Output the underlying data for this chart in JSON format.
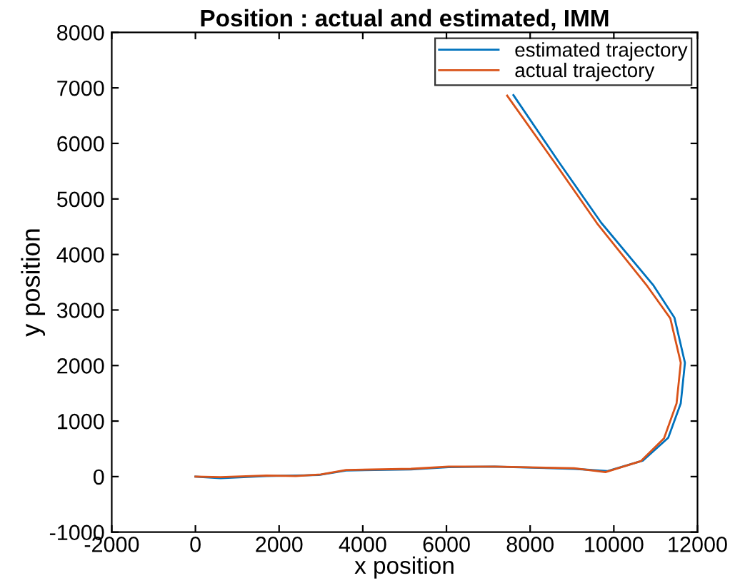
{
  "chart_data": {
    "type": "line",
    "title": "Position : actual and estimated, IMM",
    "xlabel": "x position",
    "ylabel": "y position",
    "xlim": [
      -2000,
      12000
    ],
    "ylim": [
      -1000,
      8000
    ],
    "xticks": [
      -2000,
      0,
      2000,
      4000,
      6000,
      8000,
      10000,
      12000
    ],
    "yticks": [
      -1000,
      0,
      1000,
      2000,
      3000,
      4000,
      5000,
      6000,
      7000,
      8000
    ],
    "grid": false,
    "legend": "top right",
    "series": [
      {
        "name": "estimated trajectory",
        "color": "#0072bd",
        "x": [
          0,
          600,
          1700,
          2400,
          2950,
          3600,
          5150,
          6050,
          7150,
          9050,
          9850,
          10700,
          11300,
          11600,
          11700,
          11450,
          10950,
          9700,
          8700,
          7600
        ],
        "values": [
          0,
          -30,
          10,
          20,
          30,
          110,
          130,
          170,
          180,
          140,
          100,
          290,
          700,
          1320,
          2050,
          2860,
          3440,
          4570,
          5650,
          6870
        ]
      },
      {
        "name": "actual trajectory",
        "color": "#d95319",
        "x": [
          0,
          600,
          1700,
          2400,
          3000,
          3600,
          5150,
          6050,
          7150,
          9050,
          9800,
          10650,
          11200,
          11500,
          11600,
          11350,
          10800,
          9600,
          8600,
          7450
        ],
        "values": [
          0,
          -10,
          20,
          10,
          40,
          120,
          140,
          180,
          180,
          150,
          80,
          280,
          690,
          1320,
          2050,
          2850,
          3430,
          4560,
          5640,
          6860
        ]
      }
    ]
  }
}
